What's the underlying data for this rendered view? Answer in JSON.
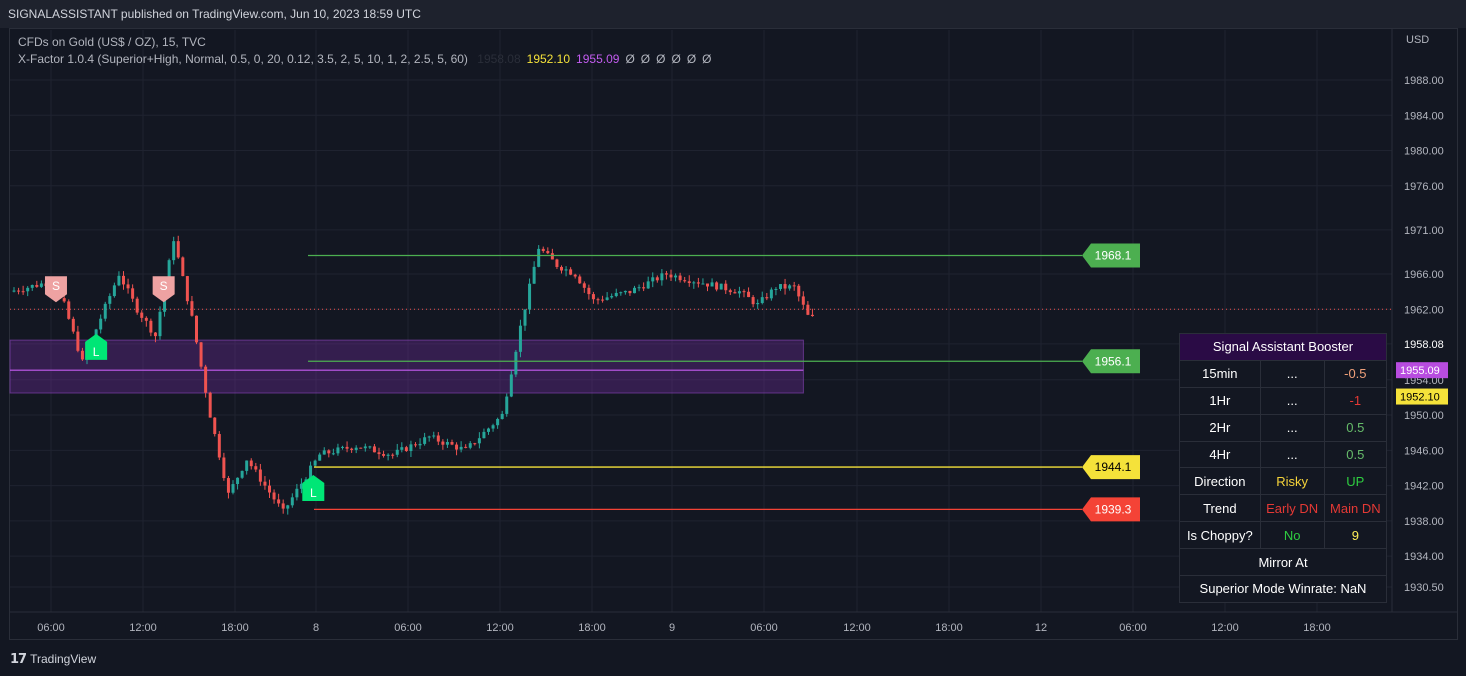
{
  "header": {
    "text": "SIGNALASSISTANT published on TradingView.com, Jun 10, 2023 18:59 UTC"
  },
  "legend": {
    "symbol": "CFDs on Gold (US$ / OZ), 15, TVC",
    "indicator": "X-Factor 1.0.4 (Superior+High, Normal, 0.5, 0, 20, 0.12, 3.5, 2, 5, 10, 1, 2, 2.5, 5, 60)",
    "values": [
      {
        "text": "1958.08",
        "color": "#2a2e39"
      },
      {
        "text": "1952.10",
        "color": "#f5e23a"
      },
      {
        "text": "1955.09",
        "color": "#c35cf0"
      },
      {
        "text": "Ø",
        "color": "#b2b5be"
      },
      {
        "text": "Ø",
        "color": "#b2b5be"
      },
      {
        "text": "Ø",
        "color": "#b2b5be"
      },
      {
        "text": "Ø",
        "color": "#b2b5be"
      },
      {
        "text": "Ø",
        "color": "#b2b5be"
      },
      {
        "text": "Ø",
        "color": "#b2b5be"
      }
    ]
  },
  "currency": "USD",
  "footer": {
    "brand": "TradingView"
  },
  "colors": {
    "up": "#26a69a",
    "down": "#ef5350",
    "green_line": "#4caf50",
    "yellow": "#f5e23a",
    "red": "#f44336",
    "purple": "#c35cf0"
  },
  "chart_data": {
    "type": "candlestick",
    "ylim": [
      1928.0,
      1992.0
    ],
    "y_ticks": [
      "1988.00",
      "1984.00",
      "1980.00",
      "1976.00",
      "1971.00",
      "1966.00",
      "1962.00",
      "1958.08",
      "1954.00",
      "1950.00",
      "1946.00",
      "1942.00",
      "1938.00",
      "1934.00",
      "1930.50"
    ],
    "x_ticks": [
      "06:00",
      "12:00",
      "18:00",
      "8",
      "06:00",
      "12:00",
      "18:00",
      "9",
      "06:00",
      "12:00",
      "18:00",
      "12",
      "06:00",
      "12:00",
      "18:00"
    ],
    "price_close": 1962.0,
    "zone": {
      "top": 1958.5,
      "bottom": 1952.5,
      "mid": 1955.09
    },
    "levels": [
      {
        "value": 1968.1,
        "label": "1968.1",
        "color": "#4caf50"
      },
      {
        "value": 1956.1,
        "label": "1956.1",
        "color": "#4caf50"
      },
      {
        "value": 1944.1,
        "label": "1944.1",
        "color": "#f5e23a"
      },
      {
        "value": 1939.3,
        "label": "1939.3",
        "color": "#f44336"
      }
    ],
    "axis_labels": [
      {
        "text": "1955.09",
        "value": 1955.09,
        "bg": "#b84ce0",
        "fg": "#ffffff"
      },
      {
        "text": "1952.10",
        "value": 1952.1,
        "bg": "#f5e23a",
        "fg": "#000000"
      }
    ],
    "signals": [
      {
        "type": "S",
        "t": 2.3,
        "price": 1964.5
      },
      {
        "type": "L",
        "t": 4.5,
        "price": 1957.5
      },
      {
        "type": "S",
        "t": 8.2,
        "price": 1964.5
      },
      {
        "type": "L",
        "t": 16.4,
        "price": 1941.5
      }
    ],
    "anchors": [
      [
        0,
        1964.0
      ],
      [
        2,
        1965.0
      ],
      [
        3,
        1962.5
      ],
      [
        4,
        1956.0
      ],
      [
        5,
        1961.0
      ],
      [
        6,
        1966.0
      ],
      [
        7,
        1962.0
      ],
      [
        8,
        1959.0
      ],
      [
        9,
        1970.0
      ],
      [
        10,
        1961.0
      ],
      [
        11,
        1950.0
      ],
      [
        12,
        1941.0
      ],
      [
        13,
        1945.0
      ],
      [
        14,
        1942.0
      ],
      [
        15,
        1939.0
      ],
      [
        17,
        1945.5
      ],
      [
        19,
        1946.5
      ],
      [
        21,
        1945.5
      ],
      [
        23,
        1947.5
      ],
      [
        25,
        1946.0
      ],
      [
        27,
        1950.0
      ],
      [
        28,
        1960.0
      ],
      [
        29,
        1969.0
      ],
      [
        30,
        1967.0
      ],
      [
        31,
        1966.0
      ],
      [
        32,
        1963.0
      ],
      [
        34,
        1964.0
      ],
      [
        36,
        1966.0
      ],
      [
        38,
        1965.0
      ],
      [
        40,
        1964.0
      ],
      [
        41,
        1962.5
      ],
      [
        42,
        1964.5
      ],
      [
        43,
        1964.5
      ],
      [
        43.8,
        1961.0
      ]
    ]
  },
  "booster": {
    "title": "Signal Assistant Booster",
    "rows": [
      {
        "label": "15min",
        "mid": "...",
        "val": "-0.5",
        "valColor": "#f0a07a"
      },
      {
        "label": "1Hr",
        "mid": "...",
        "val": "-1",
        "valColor": "#e53935"
      },
      {
        "label": "2Hr",
        "mid": "...",
        "val": "0.5",
        "valColor": "#66bb6a"
      },
      {
        "label": "4Hr",
        "mid": "...",
        "val": "0.5",
        "valColor": "#66bb6a"
      },
      {
        "label": "Direction",
        "mid": "Risky",
        "midColor": "#f5d33a",
        "val": "UP",
        "valColor": "#2ecc40"
      },
      {
        "label": "Trend",
        "mid": "Early DN",
        "midColor": "#e53935",
        "val": "Main DN",
        "valColor": "#e53935"
      },
      {
        "label": "Is Choppy?",
        "mid": "No",
        "midColor": "#2ecc40",
        "val": "9",
        "valColor": "#ffee58"
      }
    ],
    "mirror": "Mirror At",
    "winrate": "Superior Mode Winrate: NaN"
  }
}
